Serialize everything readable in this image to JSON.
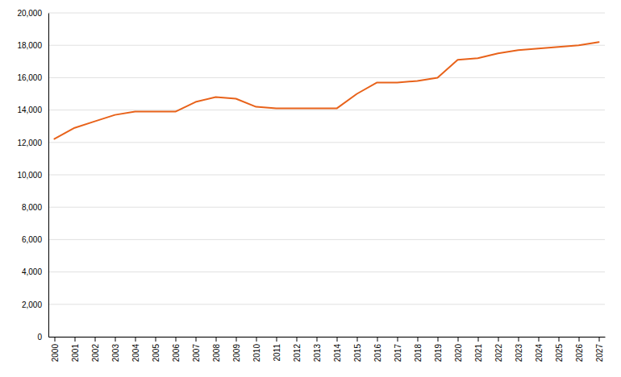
{
  "chart_data": {
    "type": "line",
    "x": [
      2000,
      2001,
      2002,
      2003,
      2004,
      2005,
      2006,
      2007,
      2008,
      2009,
      2010,
      2011,
      2012,
      2013,
      2014,
      2015,
      2016,
      2017,
      2018,
      2019,
      2020,
      2021,
      2022,
      2023,
      2024,
      2025,
      2026,
      2027
    ],
    "values": [
      12217,
      12900,
      13300,
      13700,
      13900,
      13900,
      13900,
      14500,
      14800,
      14700,
      14200,
      14100,
      14100,
      14100,
      14100,
      15000,
      15700,
      15700,
      15800,
      16000,
      17100,
      17200,
      17500,
      17700,
      17800,
      17900,
      18000,
      18200
    ],
    "color": "#E8621A",
    "xlim": [
      1999.7,
      2027.3
    ],
    "xticks": [
      2000,
      2001,
      2002,
      2003,
      2004,
      2005,
      2006,
      2007,
      2008,
      2009,
      2010,
      2011,
      2012,
      2013,
      2014,
      2015,
      2016,
      2017,
      2018,
      2019,
      2020,
      2021,
      2022,
      2023,
      2024,
      2025,
      2026,
      2027
    ],
    "ylim": [
      0,
      20000
    ],
    "yticks": [
      0,
      {
        "value": 2000,
        "label": "2,000"
      },
      {
        "value": 4000,
        "label": "4,000"
      },
      {
        "value": 6000,
        "label": "6,000"
      },
      {
        "value": 8000,
        "label": "8,000"
      },
      {
        "value": 10000,
        "label": "10,000"
      },
      {
        "value": 12000,
        "label": "12,000"
      },
      {
        "value": 14000,
        "label": "14,000"
      },
      {
        "value": 16000,
        "label": "16,000"
      },
      {
        "value": 18000,
        "label": "18,000"
      },
      {
        "value": 20000,
        "label": "20,000"
      }
    ],
    "grid": true
  }
}
